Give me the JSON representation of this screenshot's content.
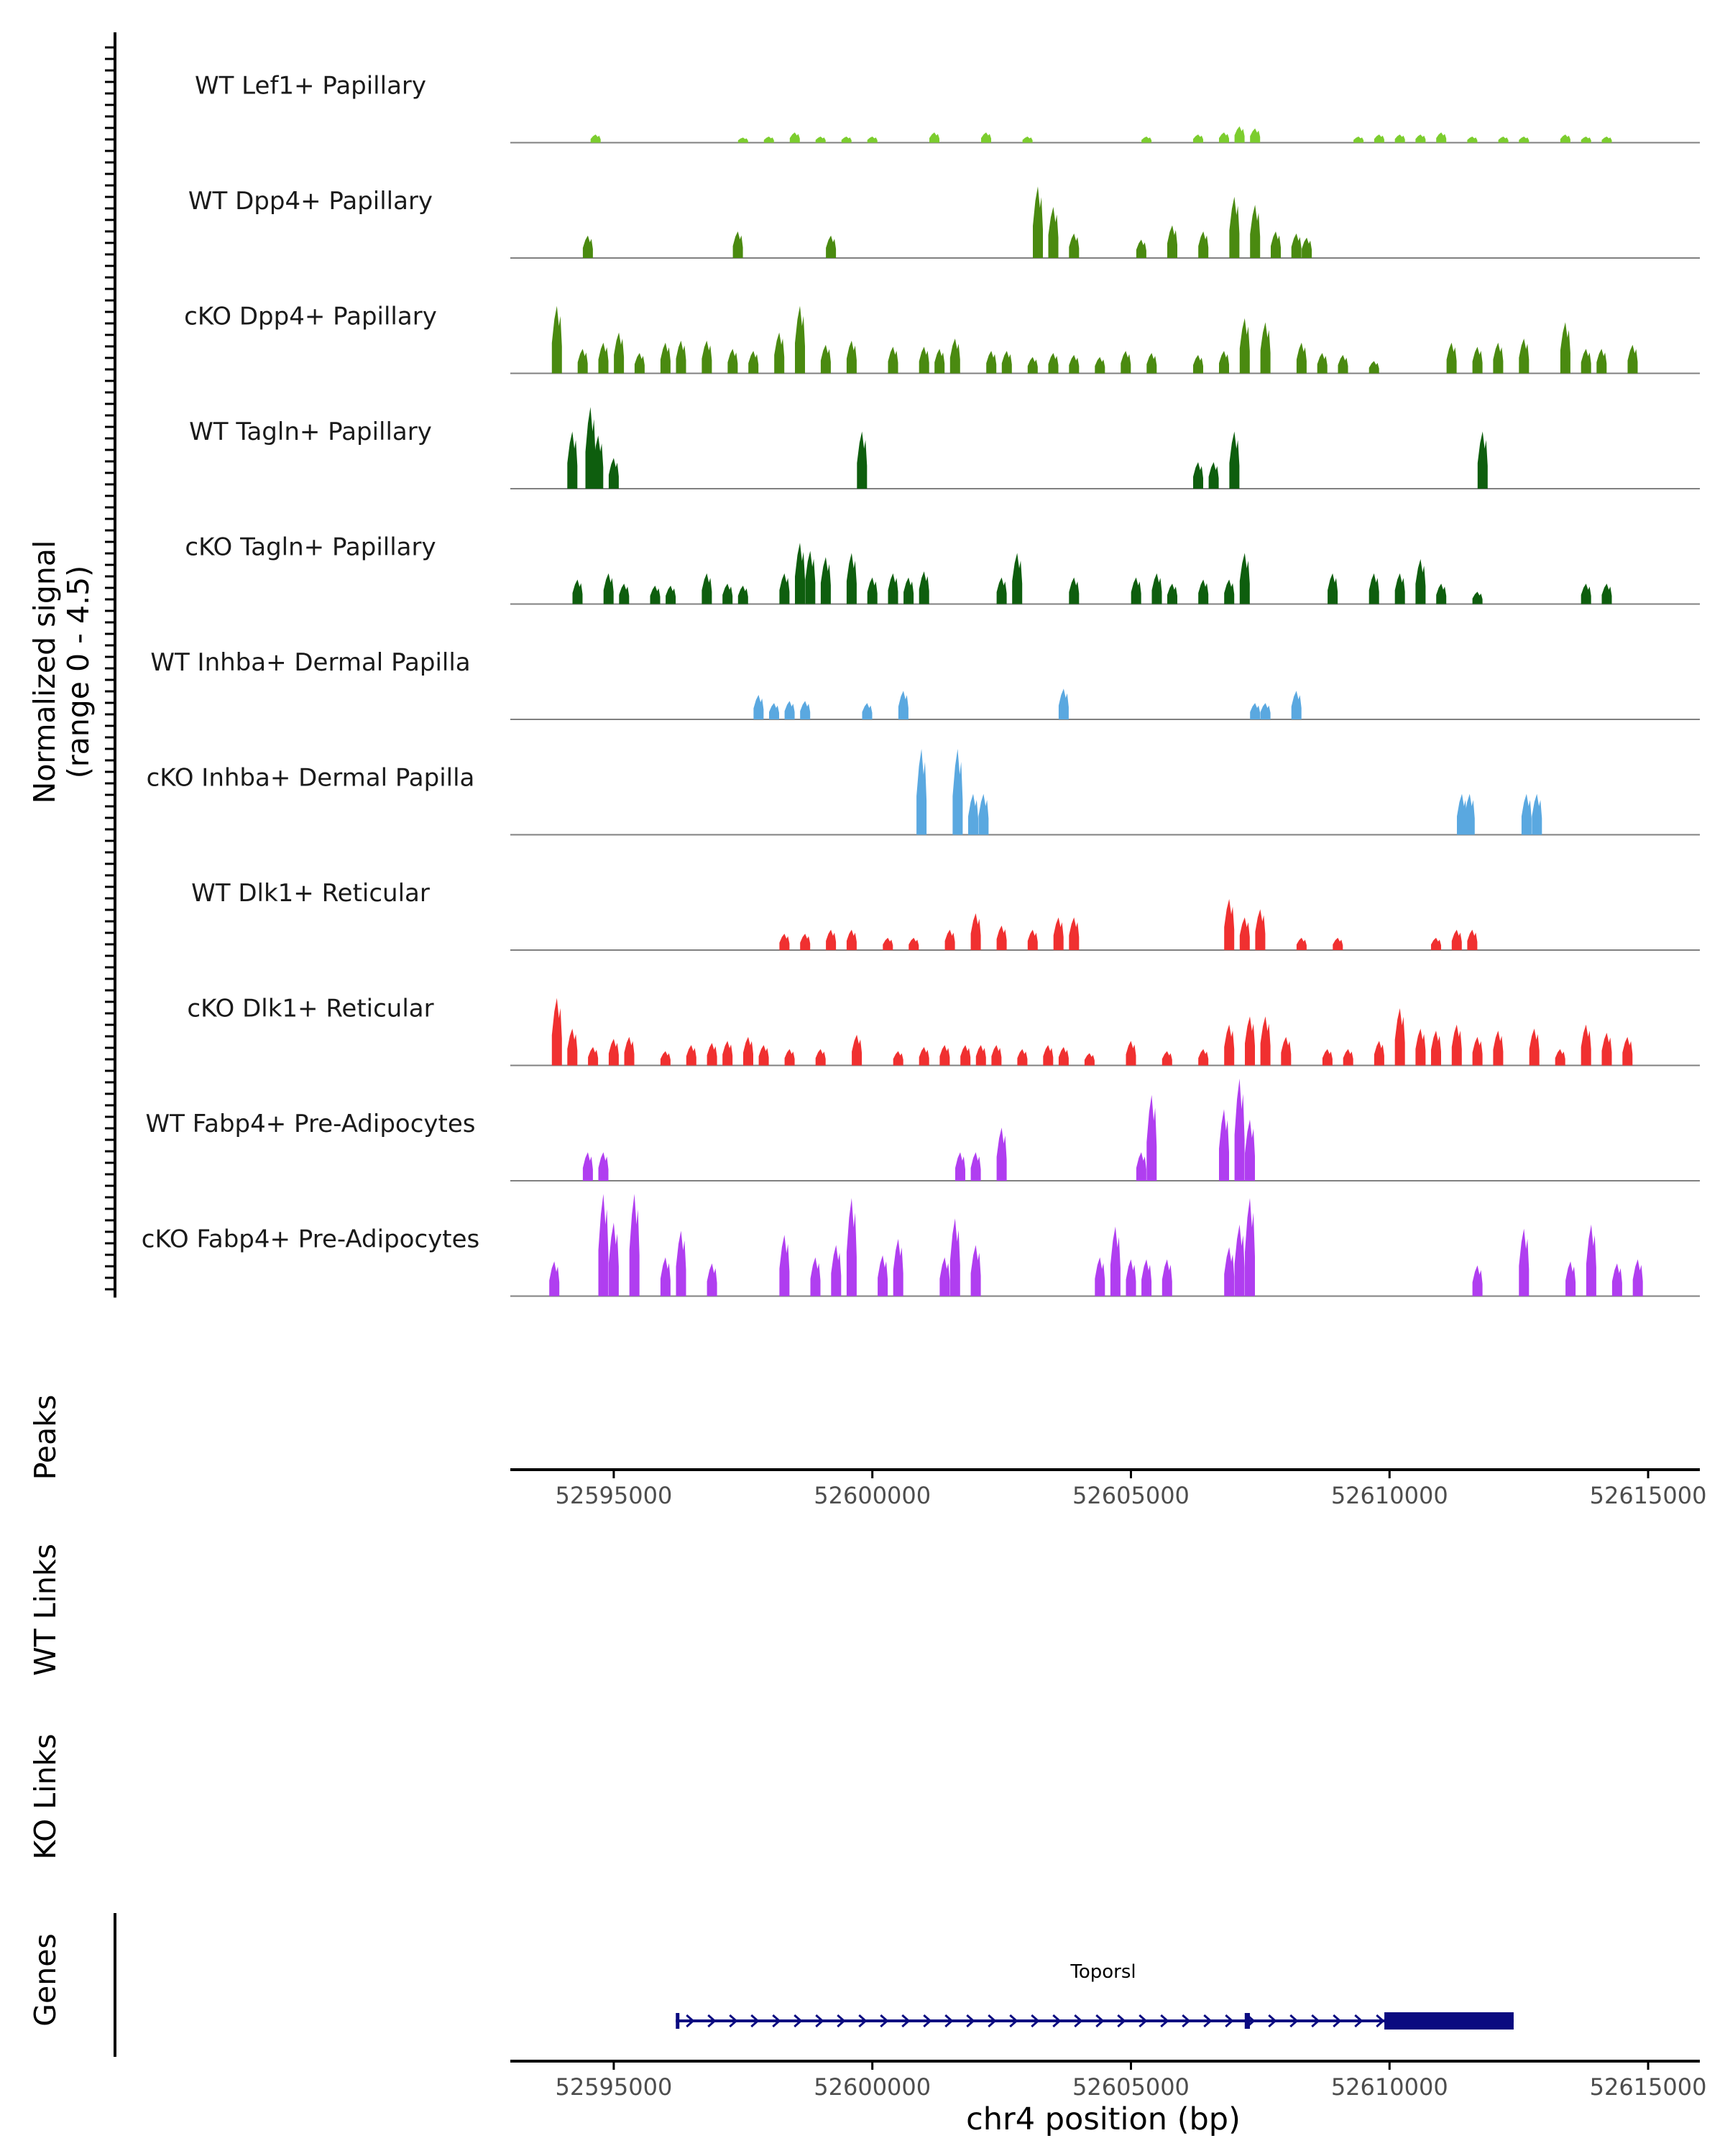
{
  "chart_data": {
    "type": "area",
    "title": "",
    "chromosome": "chr4",
    "xlabel": "chr4 position (bp)",
    "ylabel_line1": "Normalized signal",
    "ylabel_line2": "(range 0 - 4.5)",
    "ylim": [
      0,
      4.5
    ],
    "xlim": [
      52593000,
      52616000
    ],
    "x_ticks": [
      52595000,
      52600000,
      52605000,
      52610000,
      52615000
    ],
    "x_tick_labels": [
      "52595000",
      "52600000",
      "52605000",
      "52610000",
      "52615000"
    ],
    "panel_labels": {
      "peaks": "Peaks",
      "wt_links": "WT Links",
      "ko_links": "KO Links",
      "genes": "Genes"
    },
    "tracks": [
      {
        "name": "WT Lef1+ Papillary",
        "color": "#7ccd2e",
        "peaks": [
          [
            52594650,
            0.4
          ],
          [
            52597500,
            0.25
          ],
          [
            52598000,
            0.3
          ],
          [
            52598500,
            0.5
          ],
          [
            52599000,
            0.3
          ],
          [
            52599500,
            0.3
          ],
          [
            52600000,
            0.3
          ],
          [
            52601200,
            0.5
          ],
          [
            52602200,
            0.5
          ],
          [
            52603000,
            0.3
          ],
          [
            52605300,
            0.3
          ],
          [
            52606300,
            0.4
          ],
          [
            52606800,
            0.5
          ],
          [
            52607100,
            0.8
          ],
          [
            52607400,
            0.7
          ],
          [
            52609400,
            0.3
          ],
          [
            52609800,
            0.4
          ],
          [
            52610200,
            0.4
          ],
          [
            52610600,
            0.4
          ],
          [
            52611000,
            0.5
          ],
          [
            52611600,
            0.3
          ],
          [
            52612200,
            0.3
          ],
          [
            52612600,
            0.3
          ],
          [
            52613400,
            0.4
          ],
          [
            52613800,
            0.3
          ],
          [
            52614200,
            0.3
          ]
        ]
      },
      {
        "name": "WT Dpp4+ Papillary",
        "color": "#4a8a10",
        "peaks": [
          [
            52594500,
            1.1
          ],
          [
            52597400,
            1.3
          ],
          [
            52599200,
            1.1
          ],
          [
            52603200,
            3.5
          ],
          [
            52603500,
            2.5
          ],
          [
            52603900,
            1.2
          ],
          [
            52605200,
            0.9
          ],
          [
            52605800,
            1.6
          ],
          [
            52606400,
            1.3
          ],
          [
            52607000,
            3.0
          ],
          [
            52607400,
            2.6
          ],
          [
            52607800,
            1.3
          ],
          [
            52608200,
            1.2
          ],
          [
            52608400,
            1.0
          ]
        ]
      },
      {
        "name": "cKO Dpp4+ Papillary",
        "color": "#4a8a10",
        "peaks": [
          [
            52593900,
            3.3
          ],
          [
            52594400,
            1.2
          ],
          [
            52594800,
            1.5
          ],
          [
            52595100,
            2.0
          ],
          [
            52595500,
            1.0
          ],
          [
            52596000,
            1.5
          ],
          [
            52596300,
            1.6
          ],
          [
            52596800,
            1.6
          ],
          [
            52597300,
            1.2
          ],
          [
            52597700,
            1.1
          ],
          [
            52598200,
            2.0
          ],
          [
            52598600,
            3.3
          ],
          [
            52599100,
            1.4
          ],
          [
            52599600,
            1.6
          ],
          [
            52600400,
            1.3
          ],
          [
            52601000,
            1.3
          ],
          [
            52601300,
            1.2
          ],
          [
            52601600,
            1.7
          ],
          [
            52602300,
            1.1
          ],
          [
            52602600,
            1.1
          ],
          [
            52603100,
            0.8
          ],
          [
            52603500,
            1.0
          ],
          [
            52603900,
            0.9
          ],
          [
            52604400,
            0.8
          ],
          [
            52604900,
            1.1
          ],
          [
            52605400,
            1.0
          ],
          [
            52606300,
            0.9
          ],
          [
            52606800,
            1.1
          ],
          [
            52607200,
            2.7
          ],
          [
            52607600,
            2.5
          ],
          [
            52608300,
            1.5
          ],
          [
            52608700,
            1.0
          ],
          [
            52609100,
            0.9
          ],
          [
            52609700,
            0.6
          ],
          [
            52611200,
            1.5
          ],
          [
            52611700,
            1.3
          ],
          [
            52612100,
            1.5
          ],
          [
            52612600,
            1.7
          ],
          [
            52613400,
            2.5
          ],
          [
            52613800,
            1.2
          ],
          [
            52614100,
            1.2
          ],
          [
            52614700,
            1.4
          ]
        ]
      },
      {
        "name": "WT Tagln+ Papillary",
        "color": "#0e5e0e",
        "peaks": [
          [
            52594200,
            2.8
          ],
          [
            52594550,
            4.0
          ],
          [
            52594700,
            2.6
          ],
          [
            52595000,
            1.5
          ],
          [
            52599800,
            2.8
          ],
          [
            52606300,
            1.3
          ],
          [
            52606600,
            1.3
          ],
          [
            52607000,
            2.8
          ],
          [
            52611800,
            2.8
          ]
        ]
      },
      {
        "name": "cKO Tagln+ Papillary",
        "color": "#0e5e0e",
        "peaks": [
          [
            52594300,
            1.2
          ],
          [
            52594900,
            1.5
          ],
          [
            52595200,
            1.0
          ],
          [
            52595800,
            0.9
          ],
          [
            52596100,
            0.9
          ],
          [
            52596800,
            1.5
          ],
          [
            52597200,
            1.0
          ],
          [
            52597500,
            0.9
          ],
          [
            52598300,
            1.5
          ],
          [
            52598600,
            3.0
          ],
          [
            52598800,
            2.6
          ],
          [
            52599100,
            2.3
          ],
          [
            52599600,
            2.5
          ],
          [
            52600000,
            1.3
          ],
          [
            52600400,
            1.5
          ],
          [
            52600700,
            1.3
          ],
          [
            52601000,
            1.6
          ],
          [
            52602500,
            1.3
          ],
          [
            52602800,
            2.5
          ],
          [
            52603900,
            1.3
          ],
          [
            52605100,
            1.3
          ],
          [
            52605500,
            1.5
          ],
          [
            52605800,
            1.0
          ],
          [
            52606400,
            1.2
          ],
          [
            52606900,
            1.2
          ],
          [
            52607200,
            2.5
          ],
          [
            52608900,
            1.5
          ],
          [
            52609700,
            1.5
          ],
          [
            52610200,
            1.5
          ],
          [
            52610600,
            2.2
          ],
          [
            52611000,
            1.0
          ],
          [
            52611700,
            0.6
          ],
          [
            52613800,
            1.0
          ],
          [
            52614200,
            1.0
          ]
        ]
      },
      {
        "name": "WT Inhba+ Dermal Papilla",
        "color": "#5aa8e0",
        "peaks": [
          [
            52597800,
            1.2
          ],
          [
            52598100,
            0.8
          ],
          [
            52598400,
            0.9
          ],
          [
            52598700,
            0.9
          ],
          [
            52599900,
            0.8
          ],
          [
            52600600,
            1.4
          ],
          [
            52603700,
            1.5
          ],
          [
            52607400,
            0.8
          ],
          [
            52607600,
            0.8
          ],
          [
            52608200,
            1.4
          ]
        ]
      },
      {
        "name": "cKO Inhba+ Dermal Papilla",
        "color": "#5aa8e0",
        "peaks": [
          [
            52600950,
            4.2
          ],
          [
            52601650,
            4.2
          ],
          [
            52601950,
            2.0
          ],
          [
            52602150,
            2.0
          ],
          [
            52611400,
            2.0
          ],
          [
            52611550,
            2.0
          ],
          [
            52612650,
            2.0
          ],
          [
            52612850,
            2.0
          ]
        ]
      },
      {
        "name": "WT Dlk1+ Reticular",
        "color": "#f03030",
        "peaks": [
          [
            52598300,
            0.8
          ],
          [
            52598700,
            0.8
          ],
          [
            52599200,
            1.0
          ],
          [
            52599600,
            1.0
          ],
          [
            52600300,
            0.6
          ],
          [
            52600800,
            0.6
          ],
          [
            52601500,
            1.0
          ],
          [
            52602000,
            1.8
          ],
          [
            52602500,
            1.2
          ],
          [
            52603100,
            1.0
          ],
          [
            52603600,
            1.6
          ],
          [
            52603900,
            1.6
          ],
          [
            52606900,
            2.5
          ],
          [
            52607200,
            1.6
          ],
          [
            52607500,
            2.0
          ],
          [
            52608300,
            0.6
          ],
          [
            52609000,
            0.6
          ],
          [
            52610900,
            0.6
          ],
          [
            52611300,
            1.0
          ],
          [
            52611600,
            1.0
          ]
        ]
      },
      {
        "name": "cKO Dlk1+ Reticular",
        "color": "#f03030",
        "peaks": [
          [
            52593900,
            3.3
          ],
          [
            52594200,
            1.8
          ],
          [
            52594600,
            0.9
          ],
          [
            52595000,
            1.3
          ],
          [
            52595300,
            1.4
          ],
          [
            52596000,
            0.7
          ],
          [
            52596500,
            1.0
          ],
          [
            52596900,
            1.1
          ],
          [
            52597200,
            1.2
          ],
          [
            52597600,
            1.4
          ],
          [
            52597900,
            1.0
          ],
          [
            52598400,
            0.8
          ],
          [
            52599000,
            0.8
          ],
          [
            52599700,
            1.5
          ],
          [
            52600500,
            0.7
          ],
          [
            52601000,
            0.9
          ],
          [
            52601400,
            1.0
          ],
          [
            52601800,
            1.0
          ],
          [
            52602100,
            1.0
          ],
          [
            52602400,
            1.0
          ],
          [
            52602900,
            0.8
          ],
          [
            52603400,
            1.0
          ],
          [
            52603700,
            0.9
          ],
          [
            52604200,
            0.6
          ],
          [
            52605000,
            1.2
          ],
          [
            52605700,
            0.7
          ],
          [
            52606400,
            0.8
          ],
          [
            52606900,
            2.0
          ],
          [
            52607300,
            2.4
          ],
          [
            52607600,
            2.4
          ],
          [
            52608000,
            1.4
          ],
          [
            52608800,
            0.8
          ],
          [
            52609200,
            0.8
          ],
          [
            52609800,
            1.2
          ],
          [
            52610200,
            2.8
          ],
          [
            52610600,
            1.8
          ],
          [
            52610900,
            1.7
          ],
          [
            52611300,
            2.0
          ],
          [
            52611700,
            1.4
          ],
          [
            52612100,
            1.7
          ],
          [
            52612800,
            1.8
          ],
          [
            52613300,
            0.8
          ],
          [
            52613800,
            2.0
          ],
          [
            52614200,
            1.6
          ],
          [
            52614600,
            1.4
          ]
        ]
      },
      {
        "name": "WT Fabp4+ Pre-Adipocytes",
        "color": "#b03ef0",
        "peaks": [
          [
            52594500,
            1.4
          ],
          [
            52594800,
            1.4
          ],
          [
            52601700,
            1.4
          ],
          [
            52602000,
            1.4
          ],
          [
            52602500,
            2.6
          ],
          [
            52605200,
            1.4
          ],
          [
            52605400,
            4.2
          ],
          [
            52606800,
            3.5
          ],
          [
            52607100,
            5.0
          ],
          [
            52607300,
            3.0
          ]
        ]
      },
      {
        "name": "cKO Fabp4+ Pre-Adipocytes",
        "color": "#b03ef0",
        "peaks": [
          [
            52593850,
            1.7
          ],
          [
            52594800,
            5.0
          ],
          [
            52595000,
            3.6
          ],
          [
            52595400,
            5.0
          ],
          [
            52596000,
            1.9
          ],
          [
            52596300,
            3.2
          ],
          [
            52596900,
            1.6
          ],
          [
            52598300,
            3.0
          ],
          [
            52598900,
            1.9
          ],
          [
            52599300,
            2.5
          ],
          [
            52599600,
            4.8
          ],
          [
            52600200,
            2.0
          ],
          [
            52600500,
            2.8
          ],
          [
            52601400,
            1.9
          ],
          [
            52601600,
            3.8
          ],
          [
            52602000,
            2.5
          ],
          [
            52604400,
            1.9
          ],
          [
            52604700,
            3.4
          ],
          [
            52605000,
            1.8
          ],
          [
            52605300,
            1.8
          ],
          [
            52605700,
            1.8
          ],
          [
            52606900,
            2.4
          ],
          [
            52607100,
            3.5
          ],
          [
            52607300,
            4.8
          ],
          [
            52611700,
            1.5
          ],
          [
            52612600,
            3.3
          ],
          [
            52613500,
            1.7
          ],
          [
            52613900,
            3.5
          ],
          [
            52614400,
            1.6
          ],
          [
            52614800,
            1.8
          ]
        ]
      }
    ],
    "gene": {
      "name": "Toporsl",
      "start": 52596200,
      "end": 52612400,
      "strand": "+",
      "exons": [
        [
          52596200,
          52596260
        ],
        [
          52607200,
          52607300
        ],
        [
          52609900,
          52612400
        ]
      ]
    }
  }
}
